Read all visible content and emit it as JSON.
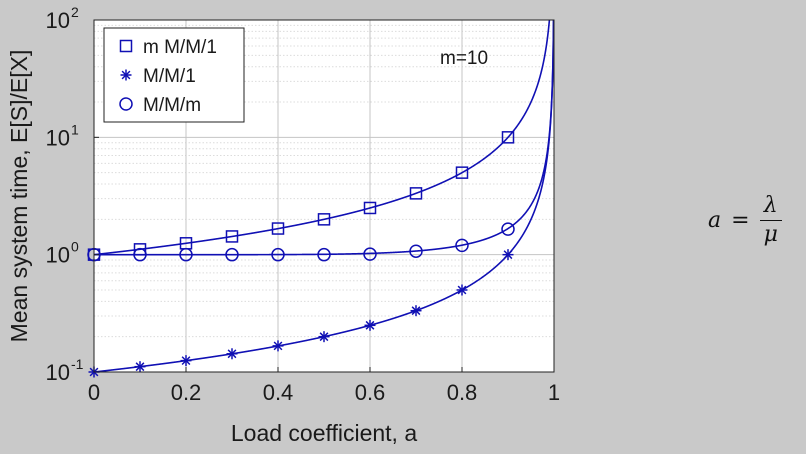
{
  "chart_data": {
    "type": "line",
    "title": "",
    "xlabel": "Load coefficient, a",
    "ylabel": "Mean system time, E[S]/E[X]",
    "xlim": [
      0,
      1
    ],
    "ylim": [
      0.1,
      100
    ],
    "yscale": "log",
    "grid": true,
    "legend_position": "top-left",
    "x_ticks": [
      "0",
      "0.2",
      "0.4",
      "0.6",
      "0.8",
      "1"
    ],
    "y_ticks": [
      {
        "base": "10",
        "exp": "-1",
        "value": 0.1
      },
      {
        "base": "10",
        "exp": "0",
        "value": 1
      },
      {
        "base": "10",
        "exp": "1",
        "value": 10
      },
      {
        "base": "10",
        "exp": "2",
        "value": 100
      }
    ],
    "annotation": "m=10",
    "m": 10,
    "line_color": "#1010b4",
    "x": [
      0,
      0.1,
      0.2,
      0.3,
      0.4,
      0.5,
      0.6,
      0.7,
      0.8,
      0.9
    ],
    "series": [
      {
        "name": "m M/M/1",
        "marker": "square",
        "values": [
          1.0,
          1.11,
          1.25,
          1.43,
          1.67,
          2.0,
          2.5,
          3.33,
          5.0,
          10.0
        ]
      },
      {
        "name": "M/M/1",
        "marker": "star",
        "values": [
          0.1,
          0.111,
          0.125,
          0.143,
          0.167,
          0.2,
          0.25,
          0.333,
          0.5,
          1.0
        ]
      },
      {
        "name": "M/M/m",
        "marker": "circle",
        "values": [
          1.0,
          1.0,
          1.0,
          1.0,
          1.0,
          1.0,
          1.01,
          1.07,
          1.2,
          1.65
        ]
      }
    ]
  },
  "formula": {
    "lhs": "a",
    "equals": "=",
    "numerator": "λ",
    "denominator": "μ"
  }
}
